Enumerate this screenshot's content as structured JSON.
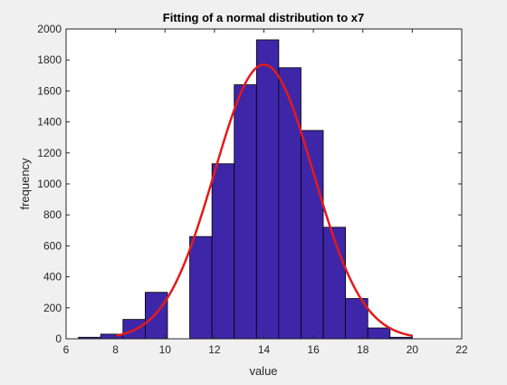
{
  "chart_data": {
    "type": "bar",
    "title": "Fitting of a normal distribution to x7",
    "xlabel": "value",
    "ylabel": "frequency",
    "xlim": [
      6,
      22
    ],
    "ylim": [
      0,
      2000
    ],
    "xticks": [
      "6",
      "8",
      "10",
      "12",
      "14",
      "16",
      "18",
      "20",
      "22"
    ],
    "yticks": [
      "0",
      "200",
      "400",
      "600",
      "800",
      "1000",
      "1200",
      "1400",
      "1600",
      "1800",
      "2000"
    ],
    "grid": false,
    "bin_width": 0.9,
    "bins": [
      {
        "x0": 6.5,
        "x1": 7.4,
        "value": 10
      },
      {
        "x0": 7.4,
        "x1": 8.3,
        "value": 30
      },
      {
        "x0": 8.3,
        "x1": 9.2,
        "value": 125
      },
      {
        "x0": 9.2,
        "x1": 10.1,
        "value": 300
      },
      {
        "x0": 10.1,
        "x1": 11.0,
        "value": 0
      },
      {
        "x0": 11.0,
        "x1": 11.9,
        "value": 660
      },
      {
        "x0": 11.9,
        "x1": 12.8,
        "value": 1130
      },
      {
        "x0": 12.8,
        "x1": 13.7,
        "value": 1640
      },
      {
        "x0": 13.7,
        "x1": 14.6,
        "value": 1930
      },
      {
        "x0": 14.6,
        "x1": 15.5,
        "value": 1750
      },
      {
        "x0": 15.5,
        "x1": 16.4,
        "value": 1345
      },
      {
        "x0": 16.4,
        "x1": 17.3,
        "value": 720
      },
      {
        "x0": 17.3,
        "x1": 18.2,
        "value": 260
      },
      {
        "x0": 18.2,
        "x1": 19.1,
        "value": 70
      },
      {
        "x0": 19.1,
        "x1": 20.0,
        "value": 10
      }
    ],
    "fit": {
      "type": "line",
      "distribution": "normal",
      "mean": 14.0,
      "sd": 2.0,
      "peak": 1770,
      "x_range": [
        8.0,
        20.0
      ]
    },
    "colors": {
      "bar_fill": "#3e26a8",
      "bar_edge": "#000000",
      "fit_line": "#e31a1c",
      "axes_bg": "#ffffff",
      "figure_bg": "#f0f0f0"
    }
  }
}
